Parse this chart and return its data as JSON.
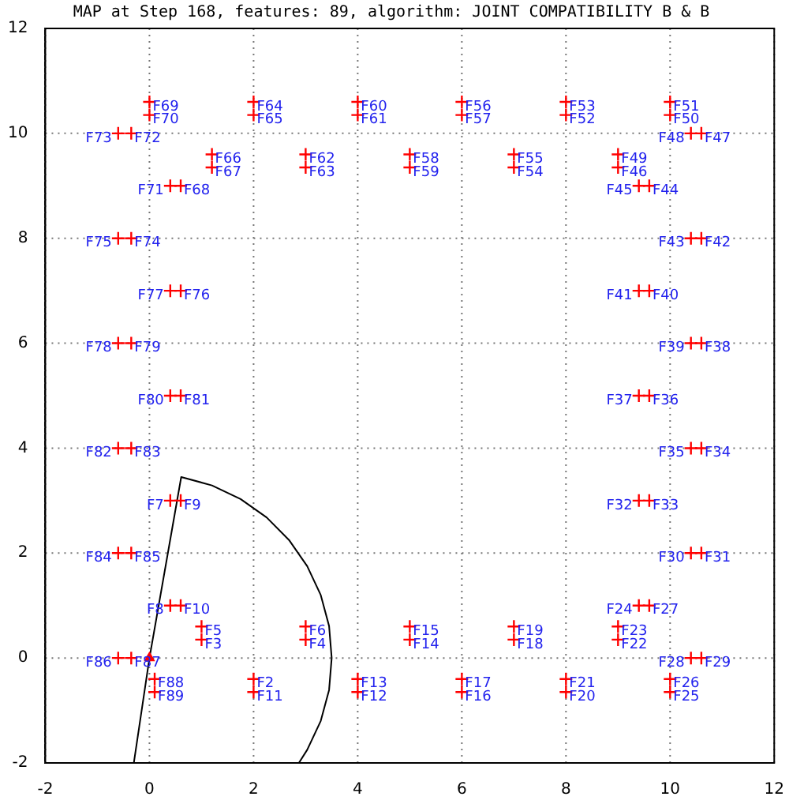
{
  "chart_data": {
    "type": "scatter",
    "title": "MAP at Step 168, features: 89, algorithm: JOINT COMPATIBILITY B & B",
    "xlim": [
      -2,
      12
    ],
    "xticks": [
      -2,
      0,
      2,
      4,
      6,
      8,
      10,
      12
    ],
    "ylim": [
      -2,
      12
    ],
    "yticks": [
      -2,
      0,
      2,
      4,
      6,
      8,
      10,
      12
    ],
    "grid": true,
    "legend": false,
    "series": [
      {
        "color": "#ff0000",
        "marker": "cross",
        "x": [
          2,
          1,
          3,
          1,
          3,
          0.4,
          0.4,
          0.6,
          0.6,
          2,
          4,
          4,
          5,
          5,
          6,
          6,
          7,
          7,
          8,
          8,
          9,
          9,
          9.4,
          10,
          10,
          9.6,
          10.4,
          10.6,
          10.4,
          10.6,
          9.4,
          9.6,
          10.6,
          10.4,
          9.6,
          9.4,
          10.6,
          10.4,
          9.6,
          9.4,
          10.6,
          10.4,
          9.6,
          9.4,
          9,
          10.6,
          10.4,
          9,
          10,
          10,
          8,
          8,
          7,
          7,
          6,
          6,
          5,
          5,
          4,
          4,
          3,
          3,
          2,
          2,
          1.2,
          1.2,
          0.6,
          0,
          0,
          0.4,
          -0.35,
          -0.6,
          -0.35,
          -0.6,
          0.6,
          0.4,
          -0.6,
          -0.35,
          0.4,
          0.6,
          -0.6,
          -0.35,
          -0.6,
          -0.35,
          -0.6,
          -0.35,
          0.1,
          0.1
        ],
        "values": [
          -0.4,
          0.35,
          0.35,
          0.6,
          0.6,
          3,
          1,
          3,
          1,
          -0.65,
          -0.65,
          -0.4,
          0.35,
          0.6,
          -0.65,
          -0.4,
          0.35,
          0.6,
          -0.65,
          -0.4,
          0.35,
          0.6,
          1,
          -0.65,
          -0.4,
          1,
          0,
          0,
          2,
          2,
          3,
          3,
          4,
          4,
          5,
          5,
          6,
          6,
          7,
          7,
          8,
          8,
          9,
          9,
          9.35,
          10,
          10,
          9.6,
          10.35,
          10.6,
          10.35,
          10.6,
          9.35,
          9.6,
          10.6,
          10.35,
          9.6,
          9.35,
          10.6,
          10.35,
          9.6,
          9.35,
          10.6,
          10.35,
          9.6,
          9.35,
          9,
          10.6,
          10.35,
          9,
          10,
          10,
          8,
          8,
          7,
          7,
          6,
          6,
          5,
          5,
          4,
          4,
          2,
          2,
          0,
          0,
          -0.4,
          -0.65
        ],
        "value_labels": [
          "F2",
          "F3",
          "F4",
          "F5",
          "F6",
          "F7",
          "F8",
          "F9",
          "F10",
          "F11",
          "F12",
          "F13",
          "F14",
          "F15",
          "F16",
          "F17",
          "F18",
          "F19",
          "F20",
          "F21",
          "F22",
          "F23",
          "F24",
          "F25",
          "F26",
          "F27",
          "F28",
          "F29",
          "F30",
          "F31",
          "F32",
          "F33",
          "F34",
          "F35",
          "F36",
          "F37",
          "F38",
          "F39",
          "F40",
          "F41",
          "F42",
          "F43",
          "F44",
          "F45",
          "F46",
          "F47",
          "F48",
          "F49",
          "F50",
          "F51",
          "F52",
          "F53",
          "F54",
          "F55",
          "F56",
          "F57",
          "F58",
          "F59",
          "F60",
          "F61",
          "F62",
          "F63",
          "F64",
          "F65",
          "F66",
          "F67",
          "F68",
          "F69",
          "F70",
          "F71",
          "F72",
          "F73",
          "F74",
          "F75",
          "F76",
          "F77",
          "F78",
          "F79",
          "F80",
          "F81",
          "F82",
          "F83",
          "F84",
          "F85",
          "F86",
          "F87",
          "F88",
          "F89"
        ]
      },
      {
        "type": "scatter",
        "color": "#ff0000",
        "marker": "triangle",
        "x": [
          0
        ],
        "values": [
          0
        ]
      },
      {
        "type": "line",
        "color": "#000000",
        "marker": "none",
        "line_style": "solid",
        "x": [
          -0.3,
          0,
          0.61,
          1.2,
          1.75,
          2.25,
          2.68,
          3.03,
          3.29,
          3.45,
          3.5,
          3.45,
          3.29,
          3.03,
          2.87
        ],
        "values": [
          -2,
          0,
          3.45,
          3.29,
          3.03,
          2.68,
          2.25,
          1.75,
          1.2,
          0.61,
          0,
          -0.61,
          -1.2,
          -1.75,
          -2
        ]
      }
    ]
  }
}
